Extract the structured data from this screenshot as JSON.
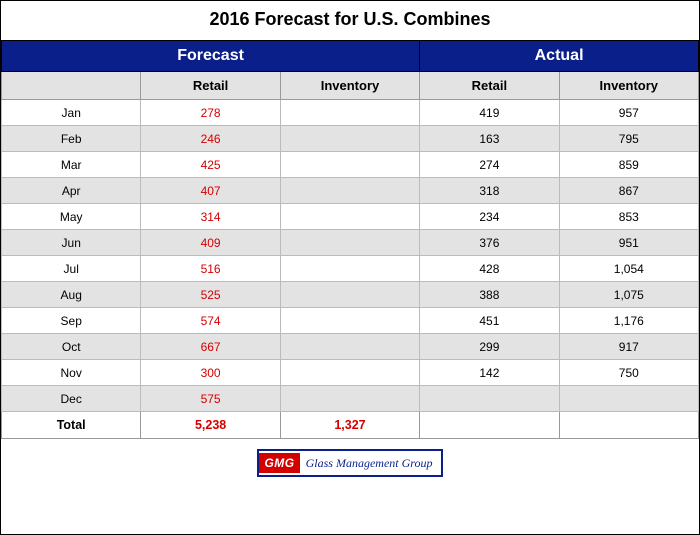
{
  "title": "2016 Forecast for U.S. Combines",
  "sections": {
    "forecast": "Forecast",
    "actual": "Actual"
  },
  "columns": {
    "blank": "",
    "f_retail": "Retail",
    "f_inventory": "Inventory",
    "a_retail": "Retail",
    "a_inventory": "Inventory"
  },
  "colors": {
    "header_bg": "#0b1f8a",
    "header_text": "#ffffff",
    "subhead_bg": "#e3e3e3",
    "row_even_bg": "#e3e3e3",
    "row_odd_bg": "#ffffff",
    "forecast_text": "#d40000",
    "border": "#000000"
  },
  "typography": {
    "title_fontsize": 18,
    "section_fontsize": 16,
    "head_fontsize": 13,
    "data_fontsize": 12
  },
  "rows": [
    {
      "month": "Jan",
      "f_retail": "278",
      "f_inventory": "",
      "a_retail": "419",
      "a_inventory": "957"
    },
    {
      "month": "Feb",
      "f_retail": "246",
      "f_inventory": "",
      "a_retail": "163",
      "a_inventory": "795"
    },
    {
      "month": "Mar",
      "f_retail": "425",
      "f_inventory": "",
      "a_retail": "274",
      "a_inventory": "859"
    },
    {
      "month": "Apr",
      "f_retail": "407",
      "f_inventory": "",
      "a_retail": "318",
      "a_inventory": "867"
    },
    {
      "month": "May",
      "f_retail": "314",
      "f_inventory": "",
      "a_retail": "234",
      "a_inventory": "853"
    },
    {
      "month": "Jun",
      "f_retail": "409",
      "f_inventory": "",
      "a_retail": "376",
      "a_inventory": "951"
    },
    {
      "month": "Jul",
      "f_retail": "516",
      "f_inventory": "",
      "a_retail": "428",
      "a_inventory": "1,054"
    },
    {
      "month": "Aug",
      "f_retail": "525",
      "f_inventory": "",
      "a_retail": "388",
      "a_inventory": "1,075"
    },
    {
      "month": "Sep",
      "f_retail": "574",
      "f_inventory": "",
      "a_retail": "451",
      "a_inventory": "1,176"
    },
    {
      "month": "Oct",
      "f_retail": "667",
      "f_inventory": "",
      "a_retail": "299",
      "a_inventory": "917"
    },
    {
      "month": "Nov",
      "f_retail": "300",
      "f_inventory": "",
      "a_retail": "142",
      "a_inventory": "750"
    },
    {
      "month": "Dec",
      "f_retail": "575",
      "f_inventory": "",
      "a_retail": "",
      "a_inventory": ""
    }
  ],
  "total": {
    "label": "Total",
    "f_retail": "5,238",
    "f_inventory": "1,327",
    "a_retail": "",
    "a_inventory": ""
  },
  "logo": {
    "badge": "GMG",
    "text": "Glass Management Group"
  }
}
